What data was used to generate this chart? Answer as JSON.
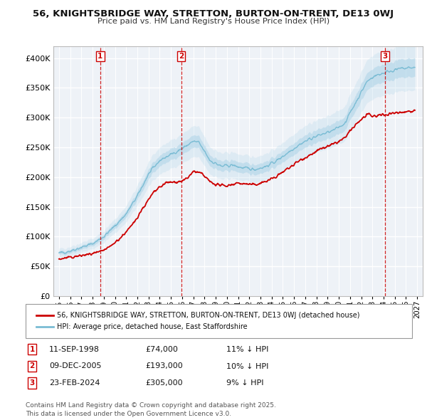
{
  "title_line1": "56, KNIGHTSBRIDGE WAY, STRETTON, BURTON-ON-TRENT, DE13 0WJ",
  "title_line2": "Price paid vs. HM Land Registry's House Price Index (HPI)",
  "ylim": [
    0,
    420000
  ],
  "yticks": [
    0,
    50000,
    100000,
    150000,
    200000,
    250000,
    300000,
    350000,
    400000
  ],
  "ytick_labels": [
    "£0",
    "£50K",
    "£100K",
    "£150K",
    "£200K",
    "£250K",
    "£300K",
    "£350K",
    "£400K"
  ],
  "sales": [
    {
      "date_num": 1998.69,
      "price": 74000,
      "label": "1",
      "date_str": "11-SEP-1998",
      "pct": "11% ↓ HPI"
    },
    {
      "date_num": 2005.93,
      "price": 193000,
      "label": "2",
      "date_str": "09-DEC-2005",
      "pct": "10% ↓ HPI"
    },
    {
      "date_num": 2024.14,
      "price": 305000,
      "label": "3",
      "date_str": "23-FEB-2024",
      "pct": "9% ↓ HPI"
    }
  ],
  "legend_line1": "56, KNIGHTSBRIDGE WAY, STRETTON, BURTON-ON-TRENT, DE13 0WJ (detached house)",
  "legend_line2": "HPI: Average price, detached house, East Staffordshire",
  "footer": "Contains HM Land Registry data © Crown copyright and database right 2025.\nThis data is licensed under the Open Government Licence v3.0.",
  "sale_color": "#cc0000",
  "hpi_color": "#7abcd4",
  "hpi_fill_color": "#aed4e8",
  "background_color": "#eef2f7",
  "grid_color": "#ffffff",
  "xlim_start": 1994.5,
  "xlim_end": 2027.5,
  "x_tick_start": 1995,
  "x_tick_end": 2027
}
